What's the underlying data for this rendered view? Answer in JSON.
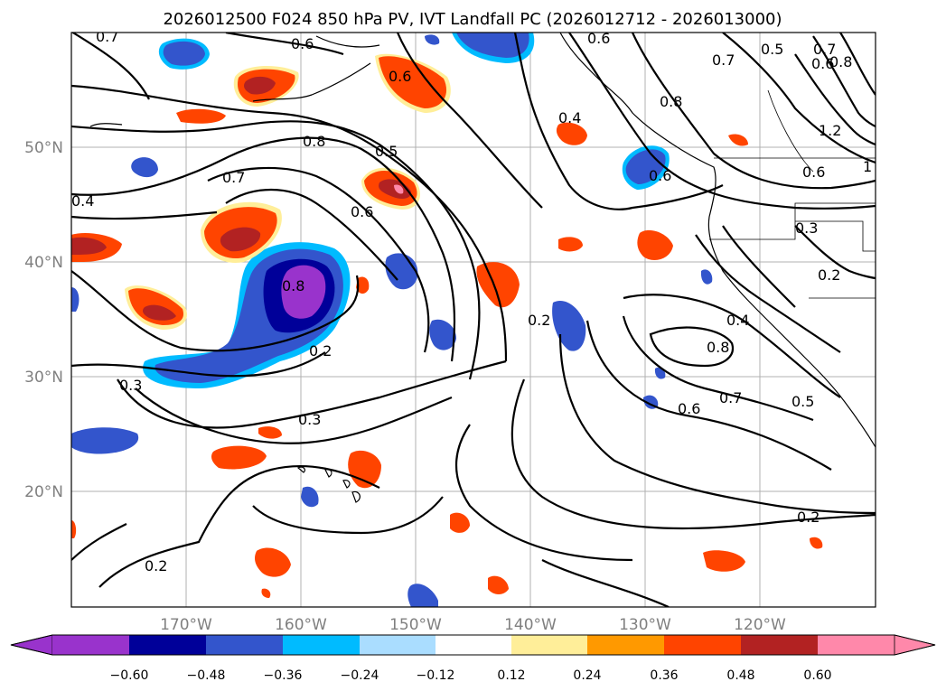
{
  "title": "2026012500 F024 850 hPa PV, IVT Landfall PC (2026012712 - 2026013000)",
  "map": {
    "lon_labels": [
      "170°W",
      "160°W",
      "150°W",
      "140°W",
      "130°W",
      "120°W"
    ],
    "lat_labels": [
      "50°N",
      "40°N",
      "30°N",
      "20°N"
    ],
    "contour_labels": [
      "0.7",
      "0.6",
      "0.8",
      "0.5",
      "0.7",
      "0.4",
      "0.6",
      "0.8",
      "0.5",
      "0.7",
      "0.8",
      "0.6",
      "0.4",
      "0.6",
      "0.3",
      "0.2",
      "0.2",
      "0.3",
      "0.3",
      "0.2",
      "0.2",
      "0.4",
      "0.8",
      "0.7",
      "0.6",
      "0.5",
      "0.2",
      "1.2",
      "0.6",
      "0.6",
      "0.8",
      "0.6",
      "0.7",
      "1"
    ]
  },
  "colorbar": {
    "ticks": [
      "−0.60",
      "−0.48",
      "−0.36",
      "−0.24",
      "−0.12",
      "0.12",
      "0.24",
      "0.36",
      "0.48",
      "0.60"
    ],
    "colors": [
      "#9933cc",
      "#000099",
      "#3355cc",
      "#00bbff",
      "#aaddff",
      "#ffffff",
      "#ffee99",
      "#ff9900",
      "#ff4400",
      "#b22222",
      "#ff88aa"
    ]
  }
}
